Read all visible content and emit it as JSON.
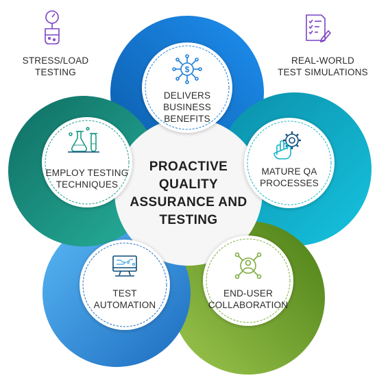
{
  "center_title": [
    "PROACTIVE",
    "QUALITY",
    "ASSURANCE AND",
    "TESTING"
  ],
  "petals": [
    {
      "id": "business",
      "label": [
        "DELIVERS BUSINESS",
        "BENEFITS"
      ],
      "icon": "dollar-network-icon",
      "color": "#1e7fd6"
    },
    {
      "id": "mature",
      "label": [
        "MATURE QA",
        "PROCESSES"
      ],
      "icon": "hand-gear-icon",
      "color": "#12b3c9"
    },
    {
      "id": "enduser",
      "label": [
        "END-USER",
        "COLLABORATION"
      ],
      "icon": "user-network-icon",
      "color": "#7cac3c"
    },
    {
      "id": "automation",
      "label": [
        "TEST",
        "AUTOMATION"
      ],
      "icon": "computer-circuit-icon",
      "color": "#3da4ea"
    },
    {
      "id": "techniques",
      "label": [
        "EMPLOY TESTING",
        "TECHNIQUES"
      ],
      "icon": "lab-flasks-icon",
      "color": "#1c9a87"
    }
  ],
  "corners": {
    "stress": {
      "label": [
        "STRESS/LOAD",
        "TESTING"
      ],
      "icon": "gauge-beaker-icon"
    },
    "realworld": {
      "label": [
        "REAL-WORLD",
        "TEST SIMULATIONS"
      ],
      "icon": "checklist-icon"
    }
  },
  "colors": {
    "icon": "#7a43c4",
    "teal_icon": "#1c9a87",
    "dark_blue_icon": "#0a4a78",
    "green_icon": "#7cac3c"
  }
}
